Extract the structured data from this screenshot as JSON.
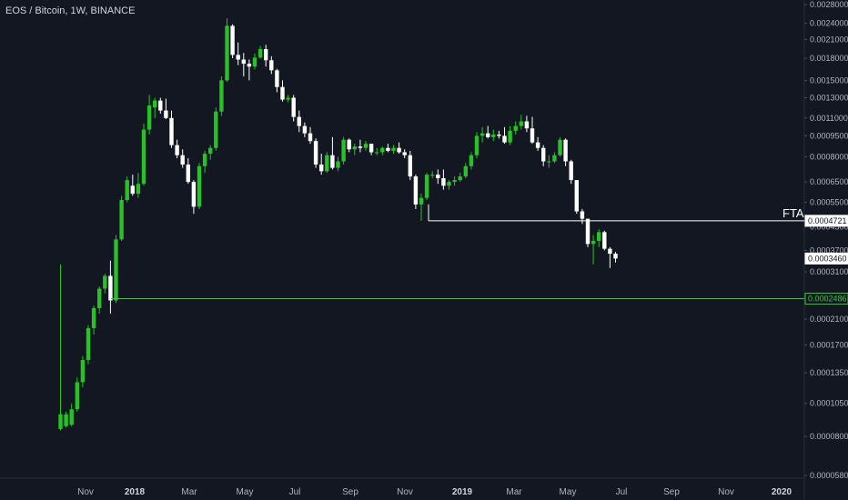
{
  "header": {
    "symbol_title": "EOS / Bitcoin, 1W, BINANCE"
  },
  "colors": {
    "background": "#131722",
    "up": "#26c226",
    "down": "#ffffff",
    "support": "#33cc33",
    "resistance": "#ffffff"
  },
  "chart_data": {
    "type": "candlestick",
    "title": "EOS / Bitcoin, 1W, BINANCE",
    "y_scale": "log",
    "ylim": [
      5.8e-05,
      0.0028
    ],
    "y_ticks": [
      "0.0028000",
      "0.0024000",
      "0.0021000",
      "0.0018000",
      "0.0015000",
      "0.0013000",
      "0.0011000",
      "0.0009500",
      "0.0008000",
      "0.0006500",
      "0.0005500",
      "0.0004500",
      "0.0003700",
      "0.0003100",
      "0.0002100",
      "0.0001700",
      "0.0001350",
      "0.0001050",
      "0.0000800",
      "0.0000580"
    ],
    "x_labels": [
      {
        "label": "Nov",
        "year": false
      },
      {
        "label": "2018",
        "year": true
      },
      {
        "label": "Mar",
        "year": false
      },
      {
        "label": "May",
        "year": false
      },
      {
        "label": "Jul",
        "year": false
      },
      {
        "label": "Sep",
        "year": false
      },
      {
        "label": "Nov",
        "year": false
      },
      {
        "label": "2019",
        "year": true
      },
      {
        "label": "Mar",
        "year": false
      },
      {
        "label": "May",
        "year": false
      },
      {
        "label": "Jul",
        "year": false
      },
      {
        "label": "Sep",
        "year": false
      },
      {
        "label": "Nov",
        "year": false
      },
      {
        "label": "2020",
        "year": true
      }
    ],
    "candles": [
      {
        "o": 8.5e-05,
        "h": 0.00033,
        "l": 8.4e-05,
        "c": 9.6e-05
      },
      {
        "o": 8.7e-05,
        "h": 9.8e-05,
        "l": 8.6e-05,
        "c": 9.6e-05
      },
      {
        "o": 8.8e-05,
        "h": 0.000105,
        "l": 8.7e-05,
        "c": 0.0001
      },
      {
        "o": 0.0001,
        "h": 0.00013,
        "l": 9.8e-05,
        "c": 0.000125
      },
      {
        "o": 0.000125,
        "h": 0.000155,
        "l": 0.00012,
        "c": 0.00015
      },
      {
        "o": 0.00015,
        "h": 0.0002,
        "l": 0.000145,
        "c": 0.000195
      },
      {
        "o": 0.000195,
        "h": 0.000235,
        "l": 0.000185,
        "c": 0.00023
      },
      {
        "o": 0.00023,
        "h": 0.000275,
        "l": 0.00022,
        "c": 0.00027
      },
      {
        "o": 0.00027,
        "h": 0.000305,
        "l": 0.00026,
        "c": 0.0003
      },
      {
        "o": 0.0003,
        "h": 0.00034,
        "l": 0.00022,
        "c": 0.000245
      },
      {
        "o": 0.000245,
        "h": 0.00042,
        "l": 0.00024,
        "c": 0.000405
      },
      {
        "o": 0.000405,
        "h": 0.00058,
        "l": 0.0004,
        "c": 0.00056
      },
      {
        "o": 0.00056,
        "h": 0.00068,
        "l": 0.00055,
        "c": 0.00066
      },
      {
        "o": 0.00063,
        "h": 0.00069,
        "l": 0.00058,
        "c": 0.00059
      },
      {
        "o": 0.00059,
        "h": 0.0007,
        "l": 0.00057,
        "c": 0.00064
      },
      {
        "o": 0.00064,
        "h": 0.00105,
        "l": 0.00063,
        "c": 0.001
      },
      {
        "o": 0.001,
        "h": 0.00133,
        "l": 0.00096,
        "c": 0.00122
      },
      {
        "o": 0.0012,
        "h": 0.0013,
        "l": 0.0011,
        "c": 0.00127
      },
      {
        "o": 0.00127,
        "h": 0.0013,
        "l": 0.00114,
        "c": 0.00117
      },
      {
        "o": 0.00117,
        "h": 0.00129,
        "l": 0.00109,
        "c": 0.0011
      },
      {
        "o": 0.0011,
        "h": 0.00117,
        "l": 0.00086,
        "c": 0.00088
      },
      {
        "o": 0.00088,
        "h": 0.00092,
        "l": 0.00079,
        "c": 0.00081
      },
      {
        "o": 0.00081,
        "h": 0.00085,
        "l": 0.00073,
        "c": 0.00075
      },
      {
        "o": 0.00075,
        "h": 0.00079,
        "l": 0.00064,
        "c": 0.00065
      },
      {
        "o": 0.00065,
        "h": 0.00066,
        "l": 0.0005,
        "c": 0.00053
      },
      {
        "o": 0.00053,
        "h": 0.00076,
        "l": 0.00052,
        "c": 0.00074
      },
      {
        "o": 0.00074,
        "h": 0.00084,
        "l": 0.0007,
        "c": 0.00082
      },
      {
        "o": 0.00082,
        "h": 0.00088,
        "l": 0.00078,
        "c": 0.00086
      },
      {
        "o": 0.00086,
        "h": 0.0012,
        "l": 0.00084,
        "c": 0.00116
      },
      {
        "o": 0.00116,
        "h": 0.00155,
        "l": 0.00112,
        "c": 0.0015
      },
      {
        "o": 0.0015,
        "h": 0.0025,
        "l": 0.00148,
        "c": 0.00235
      },
      {
        "o": 0.00235,
        "h": 0.00238,
        "l": 0.0018,
        "c": 0.00185
      },
      {
        "o": 0.00185,
        "h": 0.00205,
        "l": 0.0017,
        "c": 0.00178
      },
      {
        "o": 0.00178,
        "h": 0.00188,
        "l": 0.00155,
        "c": 0.00172
      },
      {
        "o": 0.00172,
        "h": 0.00178,
        "l": 0.0015,
        "c": 0.00168
      },
      {
        "o": 0.00168,
        "h": 0.00187,
        "l": 0.00164,
        "c": 0.00181
      },
      {
        "o": 0.00181,
        "h": 0.00199,
        "l": 0.00179,
        "c": 0.00194
      },
      {
        "o": 0.00194,
        "h": 0.00201,
        "l": 0.00168,
        "c": 0.00177
      },
      {
        "o": 0.00177,
        "h": 0.00183,
        "l": 0.00158,
        "c": 0.00163
      },
      {
        "o": 0.00163,
        "h": 0.00165,
        "l": 0.00136,
        "c": 0.00142
      },
      {
        "o": 0.00142,
        "h": 0.0015,
        "l": 0.00126,
        "c": 0.00128
      },
      {
        "o": 0.00128,
        "h": 0.00133,
        "l": 0.00125,
        "c": 0.0013
      },
      {
        "o": 0.0013,
        "h": 0.00133,
        "l": 0.00107,
        "c": 0.00111
      },
      {
        "o": 0.00111,
        "h": 0.00117,
        "l": 0.00098,
        "c": 0.00103
      },
      {
        "o": 0.00103,
        "h": 0.00106,
        "l": 0.00094,
        "c": 0.00097
      },
      {
        "o": 0.00097,
        "h": 0.00102,
        "l": 0.00089,
        "c": 0.00091
      },
      {
        "o": 0.00091,
        "h": 0.00093,
        "l": 0.00073,
        "c": 0.00075
      },
      {
        "o": 0.00075,
        "h": 0.00082,
        "l": 0.00069,
        "c": 0.00071
      },
      {
        "o": 0.00071,
        "h": 0.00083,
        "l": 0.0007,
        "c": 0.00081
      },
      {
        "o": 0.00081,
        "h": 0.00094,
        "l": 0.00072,
        "c": 0.00073
      },
      {
        "o": 0.00073,
        "h": 0.0008,
        "l": 0.00071,
        "c": 0.00077
      },
      {
        "o": 0.00077,
        "h": 0.00094,
        "l": 0.00075,
        "c": 0.00092
      },
      {
        "o": 0.00092,
        "h": 0.00093,
        "l": 0.00083,
        "c": 0.00085
      },
      {
        "o": 0.00085,
        "h": 0.00089,
        "l": 0.00081,
        "c": 0.00087
      },
      {
        "o": 0.00087,
        "h": 0.00092,
        "l": 0.00083,
        "c": 0.00086
      },
      {
        "o": 0.00086,
        "h": 0.00091,
        "l": 0.00084,
        "c": 0.00089
      },
      {
        "o": 0.00089,
        "h": 0.00089,
        "l": 0.00081,
        "c": 0.00083
      },
      {
        "o": 0.00083,
        "h": 0.00086,
        "l": 0.00081,
        "c": 0.00083
      },
      {
        "o": 0.00083,
        "h": 0.00087,
        "l": 0.00081,
        "c": 0.00086
      },
      {
        "o": 0.00086,
        "h": 0.00089,
        "l": 0.00083,
        "c": 0.00084
      },
      {
        "o": 0.00084,
        "h": 0.00088,
        "l": 0.00082,
        "c": 0.00086
      },
      {
        "o": 0.00086,
        "h": 0.0009,
        "l": 0.00082,
        "c": 0.00083
      },
      {
        "o": 0.00083,
        "h": 0.00085,
        "l": 0.00079,
        "c": 0.00081
      },
      {
        "o": 0.00081,
        "h": 0.00084,
        "l": 0.00066,
        "c": 0.00068
      },
      {
        "o": 0.00068,
        "h": 0.00069,
        "l": 0.00052,
        "c": 0.00054
      },
      {
        "o": 0.00054,
        "h": 0.00059,
        "l": 0.0004721,
        "c": 0.00057
      },
      {
        "o": 0.00057,
        "h": 0.0007,
        "l": 0.00056,
        "c": 0.00069
      },
      {
        "o": 0.00069,
        "h": 0.00071,
        "l": 0.00067,
        "c": 0.00069
      },
      {
        "o": 0.00069,
        "h": 0.00072,
        "l": 0.00064,
        "c": 0.00067
      },
      {
        "o": 0.00067,
        "h": 0.00072,
        "l": 0.00061,
        "c": 0.00063
      },
      {
        "o": 0.00063,
        "h": 0.00066,
        "l": 0.00061,
        "c": 0.00065
      },
      {
        "o": 0.00065,
        "h": 0.00068,
        "l": 0.00063,
        "c": 0.00066
      },
      {
        "o": 0.00066,
        "h": 0.0007,
        "l": 0.00065,
        "c": 0.00068
      },
      {
        "o": 0.00068,
        "h": 0.00076,
        "l": 0.00067,
        "c": 0.00074
      },
      {
        "o": 0.00074,
        "h": 0.00083,
        "l": 0.00072,
        "c": 0.00081
      },
      {
        "o": 0.00081,
        "h": 0.00098,
        "l": 0.00079,
        "c": 0.00095
      },
      {
        "o": 0.00095,
        "h": 0.00102,
        "l": 0.0009,
        "c": 0.00097
      },
      {
        "o": 0.00097,
        "h": 0.00103,
        "l": 0.00093,
        "c": 0.00094
      },
      {
        "o": 0.00094,
        "h": 0.001,
        "l": 0.00091,
        "c": 0.00096
      },
      {
        "o": 0.00096,
        "h": 0.00099,
        "l": 0.00093,
        "c": 0.00095
      },
      {
        "o": 0.00095,
        "h": 0.00102,
        "l": 0.00089,
        "c": 0.0009
      },
      {
        "o": 0.0009,
        "h": 0.00103,
        "l": 0.00088,
        "c": 0.00099
      },
      {
        "o": 0.00099,
        "h": 0.00107,
        "l": 0.00096,
        "c": 0.00103
      },
      {
        "o": 0.00103,
        "h": 0.00113,
        "l": 0.001,
        "c": 0.00107
      },
      {
        "o": 0.00107,
        "h": 0.00112,
        "l": 0.00098,
        "c": 0.00101
      },
      {
        "o": 0.00101,
        "h": 0.00111,
        "l": 0.00089,
        "c": 0.0009
      },
      {
        "o": 0.0009,
        "h": 0.00094,
        "l": 0.00084,
        "c": 0.00086
      },
      {
        "o": 0.00086,
        "h": 0.00088,
        "l": 0.00074,
        "c": 0.00077
      },
      {
        "o": 0.00077,
        "h": 0.00081,
        "l": 0.00073,
        "c": 0.00077
      },
      {
        "o": 0.00077,
        "h": 0.00083,
        "l": 0.00076,
        "c": 0.00081
      },
      {
        "o": 0.00081,
        "h": 0.00094,
        "l": 0.0008,
        "c": 0.00092
      },
      {
        "o": 0.00092,
        "h": 0.00093,
        "l": 0.00074,
        "c": 0.00077
      },
      {
        "o": 0.00077,
        "h": 0.00078,
        "l": 0.00064,
        "c": 0.00066
      },
      {
        "o": 0.00066,
        "h": 0.00066,
        "l": 0.0005,
        "c": 0.00051
      },
      {
        "o": 0.00051,
        "h": 0.00052,
        "l": 0.00046,
        "c": 0.00048
      },
      {
        "o": 0.00048,
        "h": 0.00048,
        "l": 0.00038,
        "c": 0.00039
      },
      {
        "o": 0.00039,
        "h": 0.00042,
        "l": 0.00033,
        "c": 0.0004
      },
      {
        "o": 0.0004,
        "h": 0.00044,
        "l": 0.00038,
        "c": 0.00043
      },
      {
        "o": 0.00043,
        "h": 0.000435,
        "l": 0.00037,
        "c": 0.000375
      },
      {
        "o": 0.000375,
        "h": 0.00038,
        "l": 0.00032,
        "c": 0.00036
      },
      {
        "o": 0.00036,
        "h": 0.000365,
        "l": 0.000335,
        "c": 0.000346
      }
    ],
    "lines": [
      {
        "name": "fta-resistance",
        "value": 0.0004721,
        "label": "FTA",
        "badge": "0.0004721"
      },
      {
        "name": "support",
        "value": 0.0002486,
        "badge": "0.0002486"
      }
    ],
    "last_price_badge": "0.0003460"
  }
}
